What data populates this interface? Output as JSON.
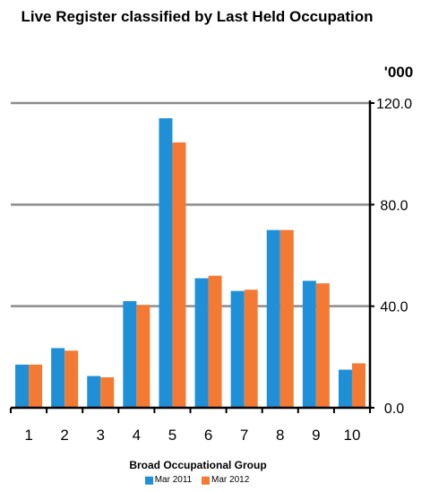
{
  "chart_data": {
    "type": "bar",
    "title": "Live Register classified by Last Held Occupation",
    "unit_label": "'000",
    "xlabel": "Broad Occupational Group",
    "ylabel": "",
    "categories": [
      "1",
      "2",
      "3",
      "4",
      "5",
      "6",
      "7",
      "8",
      "9",
      "10"
    ],
    "ylim": [
      0,
      120
    ],
    "yticks": [
      0,
      40,
      80,
      120
    ],
    "ytick_labels": [
      "0.0",
      "40.0",
      "80.0",
      "120.0"
    ],
    "y_axis_side": "right",
    "grid": true,
    "legend_position": "bottom",
    "series": [
      {
        "name": "Mar 2011",
        "color": "#1f8fd8",
        "values": [
          17.0,
          23.5,
          12.5,
          42.0,
          114.0,
          51.0,
          46.0,
          70.0,
          50.0,
          15.0
        ]
      },
      {
        "name": "Mar 2012",
        "color": "#f47a34",
        "values": [
          17.0,
          22.5,
          12.0,
          40.5,
          104.5,
          52.0,
          46.5,
          70.0,
          49.0,
          17.5
        ]
      }
    ]
  }
}
